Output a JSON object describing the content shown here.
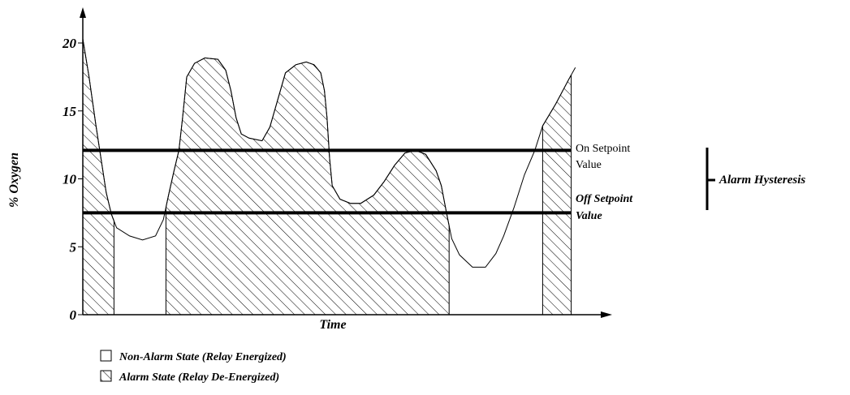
{
  "chart_data": {
    "type": "line",
    "xlabel": "Time",
    "ylabel": "% Oxygen",
    "ylim": [
      0,
      20
    ],
    "y_ticks": [
      "0",
      "5",
      "10",
      "15",
      "20"
    ],
    "series": [
      {
        "points": [
          [
            0,
            20.3
          ],
          [
            0.12,
            17.5
          ],
          [
            0.25,
            14.0
          ],
          [
            0.35,
            11.5
          ],
          [
            0.45,
            9.0
          ],
          [
            0.55,
            7.4
          ],
          [
            0.65,
            6.4
          ],
          [
            0.9,
            5.8
          ],
          [
            1.15,
            5.5
          ],
          [
            1.4,
            5.8
          ],
          [
            1.55,
            7.0
          ],
          [
            1.65,
            8.8
          ],
          [
            1.75,
            10.5
          ],
          [
            1.85,
            12.1
          ],
          [
            1.92,
            14.5
          ],
          [
            2.0,
            17.5
          ],
          [
            2.15,
            18.5
          ],
          [
            2.35,
            18.9
          ],
          [
            2.6,
            18.8
          ],
          [
            2.75,
            18.0
          ],
          [
            2.85,
            16.5
          ],
          [
            2.95,
            14.5
          ],
          [
            3.05,
            13.3
          ],
          [
            3.2,
            13.0
          ],
          [
            3.45,
            12.8
          ],
          [
            3.6,
            13.8
          ],
          [
            3.75,
            15.8
          ],
          [
            3.9,
            17.8
          ],
          [
            4.1,
            18.4
          ],
          [
            4.3,
            18.6
          ],
          [
            4.45,
            18.4
          ],
          [
            4.58,
            17.8
          ],
          [
            4.65,
            16.5
          ],
          [
            4.7,
            14.5
          ],
          [
            4.75,
            11.5
          ],
          [
            4.8,
            9.5
          ],
          [
            4.95,
            8.5
          ],
          [
            5.15,
            8.2
          ],
          [
            5.35,
            8.2
          ],
          [
            5.6,
            8.8
          ],
          [
            5.8,
            9.8
          ],
          [
            6.0,
            11.0
          ],
          [
            6.2,
            11.9
          ],
          [
            6.4,
            12.1
          ],
          [
            6.6,
            11.8
          ],
          [
            6.8,
            10.6
          ],
          [
            6.9,
            9.5
          ],
          [
            7.0,
            7.5
          ],
          [
            7.1,
            5.6
          ],
          [
            7.25,
            4.4
          ],
          [
            7.5,
            3.5
          ],
          [
            7.75,
            3.5
          ],
          [
            7.95,
            4.5
          ],
          [
            8.1,
            5.8
          ],
          [
            8.3,
            7.9
          ],
          [
            8.5,
            10.3
          ],
          [
            8.7,
            12.1
          ],
          [
            8.85,
            13.9
          ],
          [
            9.1,
            15.5
          ],
          [
            9.35,
            17.3
          ],
          [
            9.48,
            18.2
          ]
        ]
      }
    ],
    "on_setpoint": 12.1,
    "off_setpoint": 7.5,
    "alarm_intervals": [
      [
        0,
        0.6
      ],
      [
        1.6,
        7.05
      ],
      [
        8.85,
        9.4
      ]
    ],
    "annotations": {
      "on_setpoint_line1": "On Setpoint",
      "on_setpoint_line2": "Value",
      "off_setpoint_line1": "Off Setpoint",
      "off_setpoint_line2": "Value",
      "hysteresis": "Alarm Hysteresis"
    },
    "legend": {
      "placement": "bottom-left",
      "items": [
        {
          "label": "Non-Alarm State (Relay Energized)",
          "style": "empty"
        },
        {
          "label": "Alarm State (Relay De-Energized)",
          "style": "hatched"
        }
      ]
    },
    "grid": false
  }
}
